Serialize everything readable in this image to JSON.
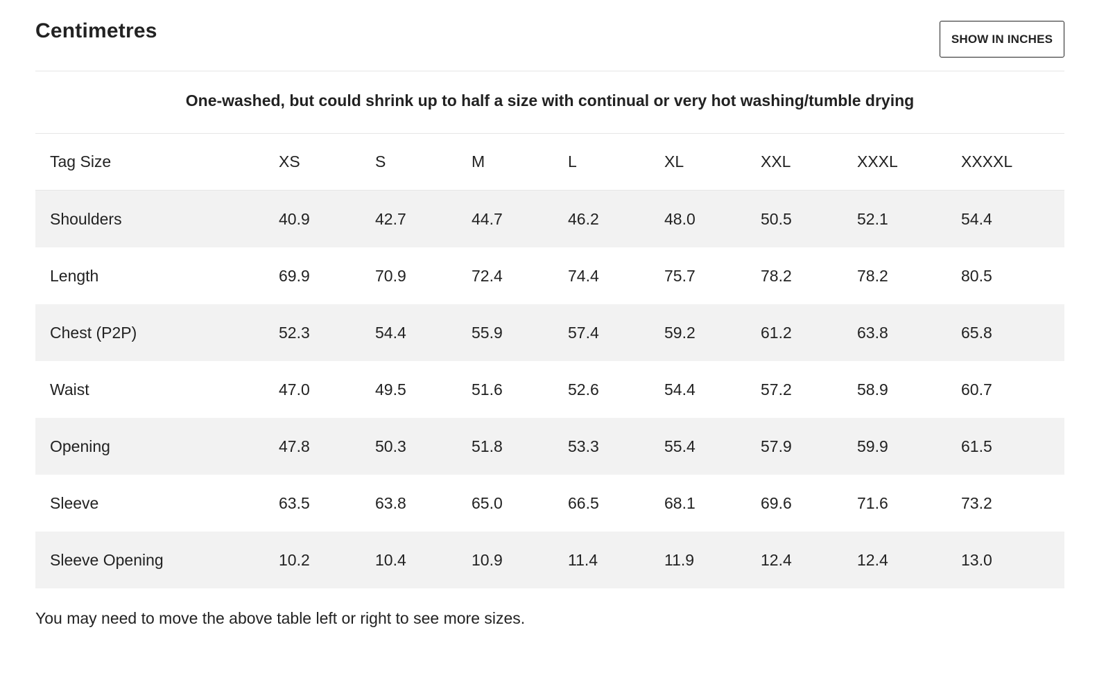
{
  "header": {
    "title": "Centimetres",
    "toggle_label": "SHOW IN INCHES"
  },
  "note": "One-washed, but could shrink up to half a size with continual or very hot washing/tumble drying",
  "table": {
    "columns": [
      "Tag Size",
      "XS",
      "S",
      "M",
      "L",
      "XL",
      "XXL",
      "XXXL",
      "XXXXL"
    ],
    "rows": [
      [
        "Shoulders",
        "40.9",
        "42.7",
        "44.7",
        "46.2",
        "48.0",
        "50.5",
        "52.1",
        "54.4"
      ],
      [
        "Length",
        "69.9",
        "70.9",
        "72.4",
        "74.4",
        "75.7",
        "78.2",
        "78.2",
        "80.5"
      ],
      [
        "Chest (P2P)",
        "52.3",
        "54.4",
        "55.9",
        "57.4",
        "59.2",
        "61.2",
        "63.8",
        "65.8"
      ],
      [
        "Waist",
        "47.0",
        "49.5",
        "51.6",
        "52.6",
        "54.4",
        "57.2",
        "58.9",
        "60.7"
      ],
      [
        "Opening",
        "47.8",
        "50.3",
        "51.8",
        "53.3",
        "55.4",
        "57.9",
        "59.9",
        "61.5"
      ],
      [
        "Sleeve",
        "63.5",
        "63.8",
        "65.0",
        "66.5",
        "68.1",
        "69.6",
        "71.6",
        "73.2"
      ],
      [
        "Sleeve Opening",
        "10.2",
        "10.4",
        "10.9",
        "11.4",
        "11.9",
        "12.4",
        "12.4",
        "13.0"
      ]
    ]
  },
  "footnote": "You may need to move the above table left or right to see more sizes.",
  "colors": {
    "text": "#222222",
    "stripe": "#f2f2f2",
    "divider": "#e6e6e6"
  }
}
